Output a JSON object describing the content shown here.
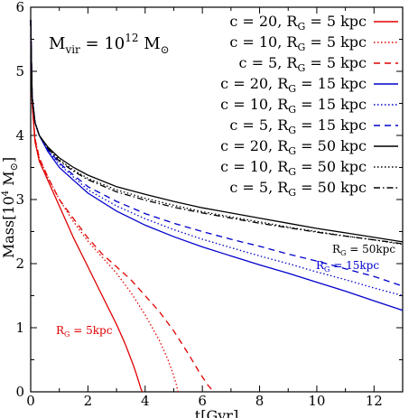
{
  "chart_data": {
    "type": "line",
    "title_parts": {
      "base": "M",
      "sub": "vir",
      "eq": " = 10",
      "exp": "12",
      "unit": " M",
      "unit_sub": "⊙"
    },
    "xlabel": "t[Gyr]",
    "ylabel": {
      "base": "Mass[10",
      "exp": "4",
      "unit": " M",
      "unit_sub": "⊙",
      "close": "]"
    },
    "xlim": [
      0,
      13
    ],
    "ylim": [
      0,
      6
    ],
    "xticks": [
      0,
      2,
      4,
      6,
      8,
      10,
      12
    ],
    "yticks": [
      0,
      1,
      2,
      3,
      4,
      5,
      6
    ],
    "legend_position": "top-right",
    "colors": {
      "rg5": "#e00000",
      "rg15": "#0000cc",
      "rg50": "#000000"
    },
    "annotations": [
      {
        "id": "ann50",
        "base": "R",
        "sub": "G",
        "rest": " = 50kpc",
        "color": "#000000"
      },
      {
        "id": "ann15",
        "base": "R",
        "sub": "G",
        "rest": " = 15kpc",
        "color": "#0000cc"
      },
      {
        "id": "ann5",
        "base": "R",
        "sub": "G",
        "rest": " = 5kpc",
        "color": "#e00000"
      }
    ],
    "series": [
      {
        "legend": {
          "a": "c = 20, R",
          "sub": "G",
          "b": " = 5 kpc"
        },
        "color": "#e00000",
        "dash": "solid",
        "x": [
          0,
          0.05,
          0.15,
          0.3,
          0.6,
          1.0,
          1.5,
          2.0,
          2.5,
          3.0,
          3.3,
          3.6,
          3.75,
          3.85,
          3.9
        ],
        "y": [
          5.8,
          4.5,
          3.9,
          3.6,
          3.3,
          2.9,
          2.4,
          1.95,
          1.5,
          1.05,
          0.75,
          0.4,
          0.2,
          0.05,
          0
        ]
      },
      {
        "legend": {
          "a": "c = 10, R",
          "sub": "G",
          "b": " = 5 kpc"
        },
        "color": "#e00000",
        "dash": "dotted",
        "x": [
          0,
          0.05,
          0.15,
          0.3,
          0.6,
          1.0,
          1.5,
          2.0,
          2.5,
          3.0,
          3.5,
          4.0,
          4.5,
          4.8,
          5.0,
          5.1,
          5.15
        ],
        "y": [
          5.8,
          4.5,
          3.95,
          3.65,
          3.35,
          3.0,
          2.65,
          2.35,
          2.1,
          1.85,
          1.55,
          1.2,
          0.8,
          0.5,
          0.25,
          0.1,
          0
        ]
      },
      {
        "legend": {
          "a": "c = 5, R",
          "sub": "G",
          "b": " = 5 kpc"
        },
        "color": "#e00000",
        "dash": "dashed",
        "x": [
          0,
          0.05,
          0.15,
          0.3,
          0.6,
          1.0,
          1.5,
          2.0,
          2.5,
          3.0,
          3.5,
          4.0,
          4.5,
          5.0,
          5.5,
          5.9,
          6.2,
          6.4
        ],
        "y": [
          5.8,
          4.5,
          3.95,
          3.65,
          3.35,
          3.0,
          2.7,
          2.4,
          2.15,
          1.95,
          1.75,
          1.5,
          1.25,
          0.95,
          0.6,
          0.3,
          0.1,
          0
        ]
      },
      {
        "legend": {
          "a": "c = 20, R",
          "sub": "G",
          "b": " = 15 kpc"
        },
        "color": "#0000cc",
        "dash": "solid",
        "x": [
          0,
          0.05,
          0.15,
          0.3,
          0.6,
          1.0,
          1.5,
          2,
          3,
          4,
          5,
          6,
          7,
          8,
          9,
          10,
          11,
          12,
          13
        ],
        "y": [
          5.8,
          4.6,
          4.2,
          4.0,
          3.75,
          3.5,
          3.3,
          3.1,
          2.82,
          2.6,
          2.42,
          2.26,
          2.12,
          1.98,
          1.85,
          1.71,
          1.57,
          1.42,
          1.27
        ]
      },
      {
        "legend": {
          "a": "c = 10, R",
          "sub": "G",
          "b": " = 15 kpc"
        },
        "color": "#0000cc",
        "dash": "dotted",
        "x": [
          0,
          0.05,
          0.15,
          0.3,
          0.6,
          1.0,
          1.5,
          2,
          3,
          4,
          5,
          6,
          7,
          8,
          9,
          10,
          11,
          12,
          13
        ],
        "y": [
          5.8,
          4.6,
          4.2,
          4.0,
          3.77,
          3.55,
          3.35,
          3.15,
          2.9,
          2.7,
          2.53,
          2.38,
          2.25,
          2.12,
          2.0,
          1.87,
          1.75,
          1.62,
          1.5
        ]
      },
      {
        "legend": {
          "a": "c = 5, R",
          "sub": "G",
          "b": " = 15 kpc"
        },
        "color": "#0000cc",
        "dash": "dashed",
        "x": [
          0,
          0.05,
          0.15,
          0.3,
          0.6,
          1.0,
          1.5,
          2,
          3,
          4,
          5,
          6,
          7,
          8,
          9,
          10,
          11,
          12,
          13
        ],
        "y": [
          5.8,
          4.6,
          4.2,
          4.0,
          3.78,
          3.57,
          3.38,
          3.2,
          2.97,
          2.78,
          2.63,
          2.5,
          2.38,
          2.27,
          2.15,
          2.04,
          1.92,
          1.8,
          1.65
        ]
      },
      {
        "legend": {
          "a": "c = 20, R",
          "sub": "G",
          "b": " = 50 kpc"
        },
        "color": "#000000",
        "dash": "solid",
        "x": [
          0,
          0.05,
          0.15,
          0.3,
          0.6,
          1.0,
          1.5,
          2,
          3,
          4,
          5,
          6,
          7,
          8,
          9,
          10,
          11,
          12,
          13
        ],
        "y": [
          5.8,
          4.6,
          4.2,
          4.0,
          3.82,
          3.65,
          3.5,
          3.38,
          3.2,
          3.08,
          2.97,
          2.87,
          2.79,
          2.71,
          2.63,
          2.55,
          2.48,
          2.41,
          2.34
        ]
      },
      {
        "legend": {
          "a": "c = 10, R",
          "sub": "G",
          "b": " = 50 kpc"
        },
        "color": "#000000",
        "dash": "dotted",
        "x": [
          0,
          0.05,
          0.15,
          0.3,
          0.6,
          1.0,
          1.5,
          2,
          3,
          4,
          5,
          6,
          7,
          8,
          9,
          10,
          11,
          12,
          13
        ],
        "y": [
          5.8,
          4.6,
          4.2,
          4.0,
          3.8,
          3.62,
          3.46,
          3.33,
          3.15,
          3.02,
          2.91,
          2.81,
          2.73,
          2.65,
          2.57,
          2.5,
          2.43,
          2.37,
          2.3
        ]
      },
      {
        "legend": {
          "a": "c = 5, R",
          "sub": "G",
          "b": " = 50 kpc"
        },
        "color": "#000000",
        "dash": "dashdot",
        "x": [
          0,
          0.05,
          0.15,
          0.3,
          0.6,
          1.0,
          1.5,
          2,
          3,
          4,
          5,
          6,
          7,
          8,
          9,
          10,
          11,
          12,
          13
        ],
        "y": [
          5.8,
          4.6,
          4.2,
          4.0,
          3.8,
          3.6,
          3.44,
          3.31,
          3.12,
          2.99,
          2.88,
          2.79,
          2.71,
          2.63,
          2.56,
          2.49,
          2.43,
          2.37,
          2.31
        ]
      }
    ]
  }
}
